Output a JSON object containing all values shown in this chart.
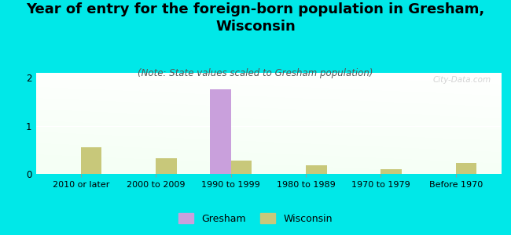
{
  "title": "Year of entry for the foreign-born population in Gresham,\nWisconsin",
  "subtitle": "(Note: State values scaled to Gresham population)",
  "categories": [
    "2010 or later",
    "2000 to 2009",
    "1990 to 1999",
    "1980 to 1989",
    "1970 to 1979",
    "Before 1970"
  ],
  "gresham_values": [
    0,
    0,
    1.76,
    0,
    0,
    0
  ],
  "wisconsin_values": [
    0.55,
    0.33,
    0.27,
    0.18,
    0.1,
    0.22
  ],
  "gresham_color": "#c9a0dc",
  "wisconsin_color": "#c8c87a",
  "background_color": "#00e8e8",
  "ylim": [
    0,
    2.1
  ],
  "yticks": [
    0,
    1,
    2
  ],
  "bar_width": 0.28,
  "watermark": "City-Data.com",
  "title_fontsize": 13,
  "subtitle_fontsize": 8.5,
  "tick_fontsize": 8,
  "legend_labels": [
    "Gresham",
    "Wisconsin"
  ]
}
